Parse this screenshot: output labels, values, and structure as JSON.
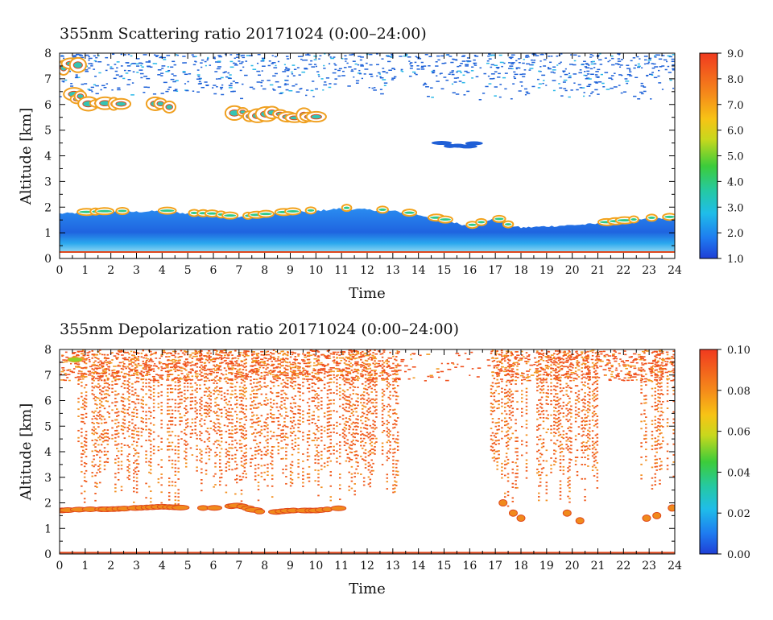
{
  "chart_data": [
    {
      "type": "heatmap",
      "title": "355nm Scattering ratio  20171024 (0:00–24:00)",
      "xlabel": "Time",
      "ylabel": "Altitude [km]",
      "xlim": [
        0,
        24
      ],
      "ylim": [
        0,
        8
      ],
      "x_ticks": [
        "0",
        "1",
        "2",
        "3",
        "4",
        "5",
        "6",
        "7",
        "8",
        "9",
        "10",
        "11",
        "12",
        "13",
        "14",
        "15",
        "16",
        "17",
        "18",
        "19",
        "20",
        "21",
        "22",
        "23",
        "24"
      ],
      "y_ticks": [
        "0",
        "1",
        "2",
        "3",
        "4",
        "5",
        "6",
        "7",
        "8"
      ],
      "colorbar": {
        "range": [
          1.0,
          9.0
        ],
        "ticks": [
          "1.0",
          "2.0",
          "3.0",
          "4.0",
          "5.0",
          "6.0",
          "7.0",
          "8.0",
          "9.0"
        ]
      },
      "features": {
        "boundary_layer_top_km": [
          [
            0,
            1.75
          ],
          [
            1,
            1.78
          ],
          [
            2,
            1.82
          ],
          [
            3,
            1.82
          ],
          [
            4,
            1.85
          ],
          [
            5,
            1.75
          ],
          [
            6,
            1.72
          ],
          [
            7,
            1.6
          ],
          [
            8,
            1.7
          ],
          [
            9,
            1.8
          ],
          [
            10,
            1.85
          ],
          [
            11,
            1.95
          ],
          [
            12,
            1.9
          ],
          [
            13,
            1.85
          ],
          [
            14,
            1.7
          ],
          [
            15,
            1.5
          ],
          [
            16,
            1.25
          ],
          [
            16.5,
            1.4
          ],
          [
            17,
            1.6
          ],
          [
            17.5,
            1.3
          ],
          [
            18,
            1.2
          ],
          [
            19,
            1.25
          ],
          [
            20,
            1.3
          ],
          [
            21,
            1.35
          ],
          [
            22,
            1.45
          ],
          [
            23,
            1.55
          ],
          [
            24,
            1.6
          ]
        ],
        "cloud_patches": [
          {
            "t_start": 0.15,
            "t_end": 0.95,
            "alt_km": 7.55,
            "peak": 9.0
          },
          {
            "t_start": 0.5,
            "t_end": 0.95,
            "alt_km": 6.3,
            "peak": 9.0
          },
          {
            "t_start": 1.1,
            "t_end": 2.6,
            "alt_km": 6.0,
            "peak": 8.0
          },
          {
            "t_start": 3.6,
            "t_end": 4.45,
            "alt_km": 6.0,
            "peak": 9.0
          },
          {
            "t_start": 6.7,
            "t_end": 10.3,
            "alt_km": 5.6,
            "peak": 9.0
          },
          {
            "t_start": 14.9,
            "t_end": 16.3,
            "alt_km": 4.45,
            "peak": 2.0
          }
        ]
      }
    },
    {
      "type": "heatmap",
      "title": "355nm Depolarization ratio  20171024 (0:00–24:00)",
      "xlabel": "Time",
      "ylabel": "Altitude [km]",
      "xlim": [
        0,
        24
      ],
      "ylim": [
        0,
        8
      ],
      "x_ticks": [
        "0",
        "1",
        "2",
        "3",
        "4",
        "5",
        "6",
        "7",
        "8",
        "9",
        "10",
        "11",
        "12",
        "13",
        "14",
        "15",
        "16",
        "17",
        "18",
        "19",
        "20",
        "21",
        "22",
        "23",
        "24"
      ],
      "y_ticks": [
        "0",
        "1",
        "2",
        "3",
        "4",
        "5",
        "6",
        "7",
        "8"
      ],
      "colorbar": {
        "range": [
          0.0,
          0.1
        ],
        "ticks": [
          "0.00",
          "0.02",
          "0.04",
          "0.06",
          "0.08",
          "0.10"
        ]
      },
      "features": {
        "depol_column_segments": [
          [
            0.7,
            11.3
          ],
          [
            11.3,
            13.2
          ],
          [
            16.8,
            18.3
          ],
          [
            18.6,
            21.0
          ],
          [
            22.6,
            24
          ]
        ],
        "low_layer_top_km": [
          [
            0,
            1.7
          ],
          [
            1,
            1.75
          ],
          [
            2,
            1.75
          ],
          [
            3,
            1.8
          ],
          [
            4,
            1.85
          ],
          [
            5,
            1.8
          ],
          [
            6,
            1.8
          ],
          [
            7,
            1.9
          ],
          [
            8,
            1.6
          ],
          [
            9,
            1.7
          ],
          [
            10,
            1.7
          ],
          [
            11,
            1.8
          ],
          [
            17,
            2.0
          ],
          [
            18,
            1.4
          ],
          [
            20,
            1.4
          ],
          [
            23,
            1.4
          ],
          [
            24,
            1.6
          ]
        ]
      }
    }
  ]
}
